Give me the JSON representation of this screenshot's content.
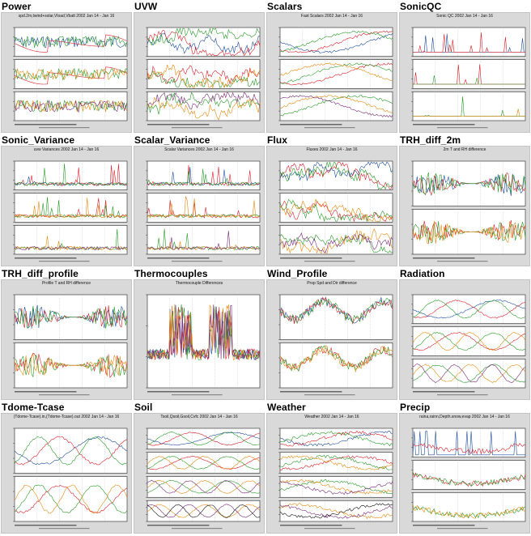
{
  "thumbnails": [
    {
      "label": "Power",
      "plot_title": "spd.2m,twind+solar,Vload,Vbatt 2002 Jan 14 - Jan 16",
      "panels": 3,
      "kind": "power"
    },
    {
      "label": "UVW",
      "plot_title": "",
      "panels": 3,
      "kind": "noisy"
    },
    {
      "label": "Scalars",
      "plot_title": "Fast Scalars 2002 Jan 14 - Jan 16",
      "panels": 3,
      "kind": "scalars"
    },
    {
      "label": "SonicQC",
      "plot_title": "Sonic QC 2002 Jan 14 - Jan 16",
      "panels": 3,
      "kind": "qc"
    },
    {
      "label": "Sonic_Variance",
      "plot_title": "uvw Variances 2002 Jan 14 - Jan 16",
      "panels": 3,
      "kind": "spiky"
    },
    {
      "label": "Scalar_Variance",
      "plot_title": "Scalar Variances 2002 Jan 14 - Jan 16",
      "panels": 3,
      "kind": "spiky"
    },
    {
      "label": "Flux",
      "plot_title": "Fluxes 2002 Jan 14 - Jan 16",
      "panels": 3,
      "kind": "noisy"
    },
    {
      "label": "TRH_diff_2m",
      "plot_title": "2m T and RH difference",
      "panels": 2,
      "kind": "diff"
    },
    {
      "label": "TRH_diff_profile",
      "plot_title": "Profile T and RH difference",
      "panels": 2,
      "kind": "diff"
    },
    {
      "label": "Thermocouples",
      "plot_title": "Thermocouple Differences",
      "panels": 1,
      "kind": "thermo"
    },
    {
      "label": "Wind_Profile",
      "plot_title": "Prop Spd and Dir difference",
      "panels": 2,
      "kind": "windprof"
    },
    {
      "label": "Radiation",
      "plot_title": "",
      "panels": 3,
      "kind": "smooth"
    },
    {
      "label": "Tdome-Tcase",
      "plot_title": "(Tdome-Tcase).in,(Tdome-Tcase).out 2002 Jan 14 - Jan 16",
      "panels": 2,
      "kind": "smooth"
    },
    {
      "label": "Soil",
      "plot_title": "Tsoil,Qsoil,Gsoil,Cvfc 2002 Jan 14 - Jan 16",
      "panels": 4,
      "kind": "smooth"
    },
    {
      "label": "Weather",
      "plot_title": "Weather 2002 Jan 14 - Jan 16",
      "panels": 4,
      "kind": "weather"
    },
    {
      "label": "Precip",
      "plot_title": "raina,rainn,Depth.snow,evap 2002 Jan 14 - Jan 16",
      "panels": 3,
      "kind": "precip"
    }
  ],
  "colors": {
    "page_bg": "#ffffff",
    "thumb_bg": "#d9d9d9",
    "panel_bg": "#ffffff",
    "series": [
      "#1f4e9e",
      "#d8202a",
      "#2a9a2a",
      "#e58a10",
      "#7a2a7a",
      "#111111"
    ]
  }
}
